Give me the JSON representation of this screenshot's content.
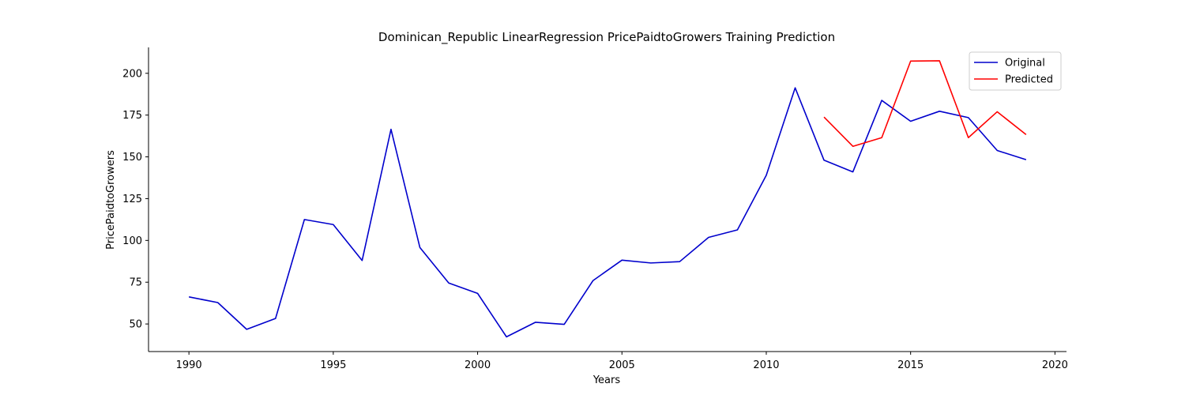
{
  "chart_data": {
    "type": "line",
    "title": "Dominican_Republic LinearRegression PricePaidtoGrowers Training Prediction",
    "xlabel": "Years",
    "ylabel": "PricePaidtoGrowers",
    "xlim": [
      1988.6,
      2020.4
    ],
    "ylim": [
      33.5,
      215.5
    ],
    "xticks": [
      1990,
      1995,
      2000,
      2005,
      2010,
      2015,
      2020
    ],
    "yticks": [
      50,
      75,
      100,
      125,
      150,
      175,
      200
    ],
    "grid": false,
    "legend_position": "top-right",
    "series": [
      {
        "name": "Original",
        "color": "#0000cc",
        "x": [
          1990,
          1991,
          1992,
          1993,
          1994,
          1995,
          1996,
          1997,
          1998,
          1999,
          2000,
          2001,
          2002,
          2003,
          2004,
          2005,
          2006,
          2007,
          2008,
          2009,
          2010,
          2011,
          2012,
          2013,
          2014,
          2015,
          2016,
          2017,
          2018,
          2019
        ],
        "y": [
          66.2,
          62.8,
          46.8,
          53.3,
          112.5,
          109.5,
          88.0,
          166.5,
          95.8,
          74.5,
          68.3,
          42.3,
          51.0,
          49.8,
          76.0,
          88.2,
          86.5,
          87.3,
          101.8,
          106.3,
          139.0,
          191.3,
          148.0,
          141.0,
          183.8,
          171.3,
          177.3,
          173.5,
          153.8,
          148.3
        ]
      },
      {
        "name": "Predicted",
        "color": "#ff0000",
        "x": [
          2012,
          2013,
          2014,
          2015,
          2016,
          2017,
          2018,
          2019
        ],
        "y": [
          173.8,
          156.3,
          161.5,
          207.3,
          207.5,
          161.5,
          177.0,
          163.3
        ]
      }
    ]
  }
}
